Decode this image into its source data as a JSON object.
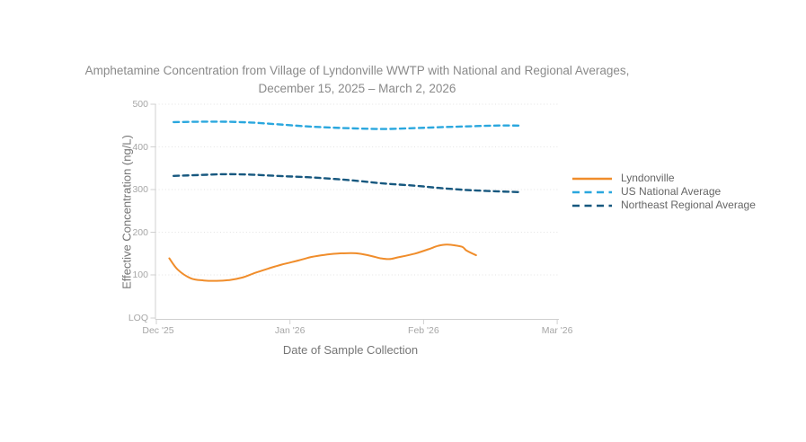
{
  "title": {
    "line1": "Amphetamine Concentration from Village of Lyndonville WWTP with National and Regional Averages,",
    "line2": "December 15, 2025 – March 2, 2026"
  },
  "axes": {
    "y": {
      "label": "Effective Concentration (ng/L)",
      "ticks": [
        {
          "label": "500",
          "value": 500
        },
        {
          "label": "400",
          "value": 400
        },
        {
          "label": "300",
          "value": 300
        },
        {
          "label": "200",
          "value": 200
        },
        {
          "label": "100",
          "value": 100
        },
        {
          "label": "LOQ",
          "value": 0
        }
      ]
    },
    "x": {
      "label": "Date of Sample Collection",
      "ticks": [
        {
          "label": "Dec '25",
          "month": 0
        },
        {
          "label": "Jan '26",
          "month": 1
        },
        {
          "label": "Feb '26",
          "month": 2
        },
        {
          "label": "Mar '26",
          "month": 3
        }
      ]
    }
  },
  "colors": {
    "lyndonville": "#F08D2B",
    "us_national": "#2AA7DE",
    "northeast_regional": "#17587F",
    "gridline": "#e3e3e3",
    "axis_line": "#d0d0d0",
    "tick_text": "#a6a6a6",
    "title_text": "#8a8a8a"
  },
  "chart_data": {
    "type": "line",
    "title": "Amphetamine Concentration from Village of Lyndonville WWTP with National and Regional Averages, December 15, 2025 – March 2, 2026",
    "xlabel": "Date of Sample Collection",
    "ylabel": "Effective Concentration (ng/L)",
    "ylim": [
      0,
      500
    ],
    "y_ticks": [
      "LOQ",
      "100",
      "200",
      "300",
      "400",
      "500"
    ],
    "x_ticks": [
      "Dec '25",
      "Jan '26",
      "Feb '26",
      "Mar '26"
    ],
    "grid": "horizontal-dotted",
    "legend_position": "right",
    "series": [
      {
        "name": "Lyndonville",
        "color": "#F08D2B",
        "style": "solid",
        "points": [
          [
            "2025-12-04",
            139
          ],
          [
            "2025-12-06",
            112
          ],
          [
            "2025-12-09",
            92
          ],
          [
            "2025-12-12",
            87
          ],
          [
            "2025-12-15",
            86
          ],
          [
            "2025-12-18",
            88
          ],
          [
            "2025-12-21",
            94
          ],
          [
            "2025-12-24",
            105
          ],
          [
            "2025-12-27",
            115
          ],
          [
            "2025-12-30",
            124
          ],
          [
            "2026-01-03",
            134
          ],
          [
            "2026-01-06",
            142
          ],
          [
            "2026-01-09",
            147
          ],
          [
            "2026-01-12",
            150
          ],
          [
            "2026-01-15",
            151
          ],
          [
            "2026-01-17",
            150
          ],
          [
            "2026-01-20",
            144
          ],
          [
            "2026-01-22",
            139
          ],
          [
            "2026-01-24",
            137
          ],
          [
            "2026-01-26",
            141
          ],
          [
            "2026-01-30",
            150
          ],
          [
            "2026-02-02",
            160
          ],
          [
            "2026-02-04",
            168
          ],
          [
            "2026-02-06",
            171
          ],
          [
            "2026-02-09",
            166
          ],
          [
            "2026-02-10",
            157
          ],
          [
            "2026-02-12",
            146
          ]
        ]
      },
      {
        "name": "US National Average",
        "color": "#2AA7DE",
        "style": "dashed",
        "points": [
          [
            "2025-12-05",
            458
          ],
          [
            "2025-12-11",
            459
          ],
          [
            "2025-12-17",
            459
          ],
          [
            "2025-12-23",
            457
          ],
          [
            "2025-12-29",
            453
          ],
          [
            "2026-01-05",
            448
          ],
          [
            "2026-01-11",
            445
          ],
          [
            "2026-01-17",
            443
          ],
          [
            "2026-01-23",
            442
          ],
          [
            "2026-01-30",
            444
          ],
          [
            "2026-02-04",
            446
          ],
          [
            "2026-02-10",
            448
          ],
          [
            "2026-02-16",
            450
          ],
          [
            "2026-02-21",
            450
          ]
        ]
      },
      {
        "name": "Northeast Regional Average",
        "color": "#17587F",
        "style": "dashed",
        "points": [
          [
            "2025-12-05",
            332
          ],
          [
            "2025-12-11",
            334
          ],
          [
            "2025-12-17",
            336
          ],
          [
            "2025-12-23",
            335
          ],
          [
            "2025-12-29",
            332
          ],
          [
            "2026-01-05",
            329
          ],
          [
            "2026-01-11",
            325
          ],
          [
            "2026-01-17",
            320
          ],
          [
            "2026-01-23",
            314
          ],
          [
            "2026-01-30",
            309
          ],
          [
            "2026-02-04",
            304
          ],
          [
            "2026-02-10",
            299
          ],
          [
            "2026-02-16",
            296
          ],
          [
            "2026-02-21",
            294
          ]
        ]
      }
    ]
  }
}
